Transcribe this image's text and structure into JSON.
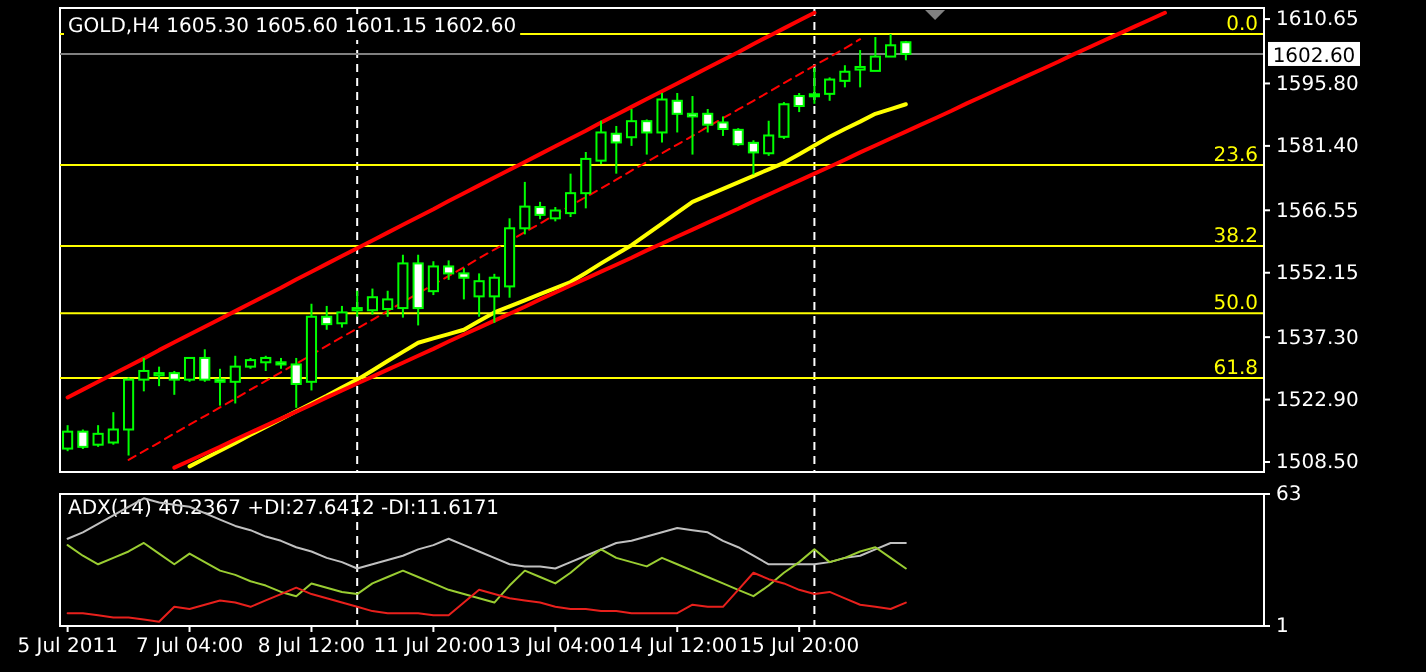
{
  "chart_data": [
    {
      "type": "candlestick",
      "title": "GOLD,H4  1605.30 1605.60 1601.15 1602.60",
      "color": "#00ff00",
      "categories": [
        null,
        null,
        null,
        null,
        null,
        null,
        null,
        null,
        null,
        null,
        null,
        null,
        null,
        null,
        null,
        null,
        null,
        null,
        null,
        null,
        null,
        null,
        null,
        null,
        null,
        null,
        null,
        null,
        null,
        null,
        null,
        null,
        null,
        null,
        null,
        null,
        null,
        null,
        null,
        null,
        null,
        null,
        null,
        null,
        null,
        null,
        null,
        null,
        null,
        null,
        null,
        null,
        null,
        null,
        null,
        null,
        null,
        null,
        null,
        null,
        null,
        null,
        null,
        null,
        null,
        null,
        null,
        null,
        null,
        null,
        null,
        null,
        null,
        null,
        null,
        null,
        null,
        null,
        null
      ],
      "ohlc": [
        [
          1511.6,
          1517,
          1511,
          1515.5
        ],
        [
          1515.5,
          1516,
          1511.5,
          1512
        ],
        [
          1512.5,
          1517,
          1512,
          1515
        ],
        [
          1513,
          1520,
          1512.5,
          1516
        ],
        [
          1516,
          1528,
          1510,
          1527.5
        ],
        [
          1527.5,
          1532.5,
          1524.8,
          1529.5
        ],
        [
          1528.5,
          1530.5,
          1526,
          1529
        ],
        [
          1529,
          1529.5,
          1524,
          1527.5
        ],
        [
          1527.5,
          1532.5,
          1527,
          1532.5
        ],
        [
          1532.5,
          1534.5,
          1527,
          1527.5
        ],
        [
          1527.5,
          1530,
          1521.5,
          1527
        ],
        [
          1527,
          1533,
          1522,
          1530.5
        ],
        [
          1530.5,
          1532.5,
          1530,
          1532
        ],
        [
          1531.5,
          1533,
          1529.5,
          1532.5
        ],
        [
          1531.5,
          1532.5,
          1530,
          1531
        ],
        [
          1531,
          1532.5,
          1521,
          1526.5
        ],
        [
          1527,
          1545,
          1525,
          1542
        ],
        [
          1542,
          1544.5,
          1539,
          1540.3
        ],
        [
          1540.5,
          1544.5,
          1539.5,
          1543
        ],
        [
          1543.5,
          1548,
          1542,
          1544
        ],
        [
          1543.5,
          1548.5,
          1542.5,
          1546.5
        ],
        [
          1543.8,
          1548,
          1542,
          1546
        ],
        [
          1544,
          1556.3,
          1541.8,
          1554.3
        ],
        [
          1554.3,
          1556.3,
          1540,
          1544
        ],
        [
          1547.9,
          1554.8,
          1547,
          1553.6
        ],
        [
          1553.6,
          1555,
          1550.5,
          1552
        ],
        [
          1552,
          1553.2,
          1546,
          1551
        ],
        [
          1546.7,
          1552,
          1542,
          1550.2
        ],
        [
          1546.7,
          1551.9,
          1540.6,
          1551
        ],
        [
          1549,
          1564.7,
          1546.4,
          1562.4
        ],
        [
          1562.4,
          1573.1,
          1561,
          1567.4
        ],
        [
          1567.3,
          1568.5,
          1564.5,
          1565.5
        ],
        [
          1564.7,
          1567.3,
          1564,
          1566.5
        ],
        [
          1565.9,
          1575,
          1565,
          1570.5
        ],
        [
          1570.5,
          1580,
          1567,
          1578.4
        ],
        [
          1578,
          1587.2,
          1577.2,
          1584.5
        ],
        [
          1584.2,
          1586,
          1575,
          1582.2
        ],
        [
          1583.4,
          1589.9,
          1581.4,
          1587.1
        ],
        [
          1587.1,
          1587.5,
          1579.4,
          1584.5
        ],
        [
          1584.5,
          1593.6,
          1582.2,
          1592.1
        ],
        [
          1591.8,
          1593.6,
          1584.5,
          1588.8
        ],
        [
          1588.8,
          1592.9,
          1579.4,
          1588.2
        ],
        [
          1588.8,
          1589.9,
          1584.5,
          1586.3
        ],
        [
          1586.8,
          1588.2,
          1583.7,
          1585.3
        ],
        [
          1585.1,
          1585.5,
          1581.4,
          1581.8
        ],
        [
          1582.1,
          1582.7,
          1574.8,
          1579.9
        ],
        [
          1579.7,
          1587.2,
          1579.1,
          1583.8
        ],
        [
          1583.5,
          1591.5,
          1583,
          1591
        ],
        [
          1592.9,
          1593.6,
          1589.2,
          1590.6
        ],
        [
          1593,
          1599.4,
          1591.1,
          1593.3
        ],
        [
          1593.4,
          1597.2,
          1591.8,
          1596.7
        ],
        [
          1596.4,
          1600,
          1594.9,
          1598.5
        ],
        [
          1599,
          1603.5,
          1594.9,
          1599.6
        ],
        [
          1598.7,
          1606.5,
          1598.7,
          1602
        ],
        [
          1602,
          1607.2,
          1602,
          1604.6
        ],
        [
          1605.3,
          1605.6,
          1601.15,
          1602.6
        ],
        null,
        null,
        null,
        null,
        null,
        null,
        null,
        null,
        null,
        null,
        null,
        null,
        null,
        null,
        null,
        null,
        null,
        null,
        null,
        null,
        null,
        null,
        null
      ],
      "series": [
        {
          "type": "line",
          "color": "#ffff00",
          "line_style": "solid",
          "values": [
            null,
            null,
            null,
            null,
            null,
            null,
            null,
            null,
            1507.5,
            1509.3,
            1511.1,
            1512.9,
            1514.8,
            1516.6,
            1518.4,
            1520.2,
            1522,
            1523.8,
            1525.7,
            1527.5,
            1529.6,
            1531.8,
            1533.9,
            1536,
            1537,
            1538,
            1539,
            1541,
            1543,
            1544.4,
            1545.8,
            1547.2,
            1548.6,
            1550,
            1552.1,
            1554.3,
            1556.4,
            1558.5,
            1561,
            1563.5,
            1566,
            1568.5,
            1570,
            1571.5,
            1573,
            1574.5,
            1576,
            1577.5,
            1579.5,
            1581.5,
            1583.5,
            1585.3,
            1587,
            1588.8,
            1589.9,
            1591,
            null,
            null,
            null,
            null,
            null,
            null,
            null,
            null,
            null,
            null,
            null,
            null,
            null,
            null,
            null,
            null,
            null,
            null,
            null,
            null,
            null,
            null,
            null
          ]
        },
        {
          "type": "line",
          "color": "#ff0000",
          "line_style": "solid",
          "values": [
            1523.4,
            1525.2,
            1527.0,
            1528.8,
            1530.6,
            1532.4,
            1534.3,
            1536.1,
            1537.9,
            1539.7,
            1541.5,
            1543.3,
            1545.1,
            1546.9,
            1548.7,
            1550.6,
            1552.4,
            1554.2,
            1556.0,
            1557.8,
            1559.6,
            1561.4,
            1563.2,
            1565.0,
            1566.8,
            1568.7,
            1570.5,
            1572.3,
            1574.1,
            1575.9,
            1577.7,
            1579.5,
            1581.3,
            1583.1,
            1584.9,
            1586.8,
            1588.6,
            1590.4,
            1592.2,
            1594.0,
            1595.8,
            1597.6,
            1599.4,
            1601.2,
            1603.0,
            1604.9,
            1606.7,
            1608.5,
            1610.3,
            1612.1,
            null,
            null,
            null,
            null,
            null,
            null,
            null,
            null,
            null,
            null,
            null,
            null,
            null,
            null,
            null,
            null,
            null,
            null,
            null,
            null,
            null,
            null,
            null,
            null,
            null,
            null,
            null,
            null,
            null
          ]
        },
        {
          "type": "line",
          "color": "#ff0000",
          "line_style": "solid",
          "values": [
            null,
            null,
            null,
            null,
            null,
            null,
            null,
            1507.2,
            1508.8,
            1510.4,
            1512.0,
            1513.7,
            1515.3,
            1516.9,
            1518.5,
            1520.1,
            1521.7,
            1523.4,
            1525.0,
            1526.6,
            1528.2,
            1529.8,
            1531.4,
            1533.0,
            1534.6,
            1536.3,
            1537.9,
            1539.5,
            1541.1,
            1542.7,
            1544.3,
            1546.0,
            1547.6,
            1549.2,
            1550.8,
            1552.4,
            1554.0,
            1555.6,
            1557.3,
            1558.9,
            1560.5,
            1562.1,
            1563.7,
            1565.3,
            1566.9,
            1568.6,
            1570.2,
            1571.8,
            1573.4,
            1575.0,
            1576.6,
            1578.2,
            1579.9,
            1581.5,
            1583.1,
            1584.7,
            1586.3,
            1587.9,
            1589.5,
            1591.2,
            1592.8,
            1594.4,
            1596.0,
            1597.6,
            1599.2,
            1600.8,
            1602.5,
            1604.1,
            1605.7,
            1607.3,
            1608.9,
            1610.5,
            1612.1,
            null,
            null,
            null,
            null,
            null,
            null
          ]
        },
        {
          "type": "line",
          "color": "#ff0000",
          "line_style": "dashed",
          "values": [
            null,
            null,
            null,
            null,
            1509.0,
            1511.0,
            1513.0,
            1515.1,
            1517.1,
            1519.1,
            1521.1,
            1523.1,
            1525.2,
            1527.2,
            1529.2,
            1531.2,
            1533.2,
            1535.3,
            1537.3,
            1539.3,
            1541.3,
            1543.3,
            1545.4,
            1547.4,
            1549.4,
            1551.4,
            1553.4,
            1555.5,
            1557.5,
            1559.5,
            1561.5,
            1563.5,
            1565.6,
            1567.6,
            1569.6,
            1571.6,
            1573.6,
            1575.7,
            1577.7,
            1579.7,
            1581.7,
            1583.7,
            1585.8,
            1587.8,
            1589.8,
            1591.8,
            1593.8,
            1595.9,
            1597.9,
            1599.9,
            1601.9,
            1603.9,
            1606.0,
            null,
            null,
            null,
            null,
            null,
            null,
            null,
            null,
            null,
            null,
            null,
            null,
            null,
            null,
            null,
            null,
            null,
            null,
            null,
            null,
            null,
            null,
            null,
            null,
            null,
            null
          ]
        }
      ],
      "ref_lines": [
        {
          "axis": "y",
          "value": 1607.2,
          "color": "#ffff00"
        },
        {
          "axis": "y",
          "value": 1577.0,
          "color": "#ffff00"
        },
        {
          "axis": "y",
          "value": 1558.3,
          "color": "#ffff00"
        },
        {
          "axis": "y",
          "value": 1542.8,
          "color": "#ffff00"
        },
        {
          "axis": "y",
          "value": 1527.9,
          "color": "#ffff00"
        },
        {
          "axis": "y",
          "value": 1602.6,
          "label": "1602.60",
          "color": "#808080"
        }
      ],
      "annotations": [
        {
          "text": "0.0",
          "y": 1607.2
        },
        {
          "text": "23.6",
          "y": 1577.0
        },
        {
          "text": "38.2",
          "y": 1558.3
        },
        {
          "text": "50.0",
          "y": 1542.8
        },
        {
          "text": "61.8",
          "y": 1527.9
        }
      ],
      "ylim": [
        1506.2,
        1613.2
      ],
      "yticks": [
        {
          "value": 1610.65,
          "label": "1610.65"
        },
        {
          "value": 1595.8,
          "label": "1595.80"
        },
        {
          "value": 1581.4,
          "label": "1581.40"
        },
        {
          "value": 1566.55,
          "label": "1566.55"
        },
        {
          "value": 1552.15,
          "label": "1552.15"
        },
        {
          "value": 1537.3,
          "label": "1537.30"
        },
        {
          "value": 1522.9,
          "label": "1522.90"
        },
        {
          "value": 1508.5,
          "label": "1508.50"
        }
      ],
      "tick_labels": "y"
    },
    {
      "type": "line",
      "title": "ADX(14) 40.2367 +DI:27.6412 -DI:11.6171",
      "categories": [
        "5 Jul 2011",
        null,
        null,
        null,
        null,
        null,
        null,
        null,
        "7 Jul 04:00",
        null,
        null,
        null,
        null,
        null,
        null,
        null,
        "8 Jul 12:00",
        null,
        null,
        null,
        null,
        null,
        null,
        null,
        "11 Jul 20:00",
        null,
        null,
        null,
        null,
        null,
        null,
        null,
        "13 Jul 04:00",
        null,
        null,
        null,
        null,
        null,
        null,
        null,
        "14 Jul 12:00",
        null,
        null,
        null,
        null,
        null,
        null,
        null,
        "15 Jul 20:00",
        null,
        null,
        null,
        null,
        null,
        null,
        null,
        null,
        null,
        null,
        null,
        null,
        null,
        null,
        null,
        null,
        null,
        null,
        null,
        null,
        null,
        null,
        null,
        null,
        null,
        null,
        null,
        null,
        null,
        null
      ],
      "series": [
        {
          "color": "#c0c0c0",
          "values": [
            42,
            45,
            49,
            53,
            57,
            61,
            59,
            58,
            57,
            54,
            51,
            48,
            46,
            43,
            41,
            38,
            36,
            33,
            31,
            28,
            30,
            32,
            34,
            37,
            39,
            42,
            39,
            36,
            33,
            30,
            29,
            29,
            28,
            31,
            34,
            37,
            40,
            41,
            43,
            45,
            47,
            46,
            45,
            41,
            38,
            34,
            30,
            30,
            30,
            30,
            31,
            33,
            34,
            37,
            40,
            40,
            null,
            null,
            null,
            null,
            null,
            null,
            null,
            null,
            null,
            null,
            null,
            null,
            null,
            null,
            null,
            null,
            null,
            null,
            null,
            null,
            null,
            null,
            null
          ]
        },
        {
          "color": "#9acd32",
          "values": [
            39,
            34,
            30,
            33,
            36,
            40,
            35,
            30,
            35,
            31,
            27,
            25,
            22,
            20,
            17,
            15,
            21,
            19,
            17,
            16,
            21,
            24,
            27,
            24,
            21,
            18,
            16,
            14,
            12,
            20,
            27,
            24,
            21,
            26,
            32,
            37,
            33,
            31,
            29,
            33,
            30,
            27,
            24,
            21,
            18,
            15,
            20,
            26,
            31,
            37,
            31,
            33,
            36,
            38,
            33,
            28,
            null,
            null,
            null,
            null,
            null,
            null,
            null,
            null,
            null,
            null,
            null,
            null,
            null,
            null,
            null,
            null,
            null,
            null,
            null,
            null,
            null,
            null,
            null
          ]
        },
        {
          "color": "#e8201c",
          "values": [
            7,
            7,
            6,
            5,
            5,
            4,
            3,
            10,
            9,
            11,
            13,
            12,
            10,
            13,
            16,
            19,
            16,
            14,
            12,
            10,
            8,
            7,
            7,
            7,
            6,
            6,
            12,
            18,
            16,
            14,
            13,
            12,
            10,
            9,
            9,
            8,
            8,
            7,
            7,
            7,
            7,
            11,
            10,
            10,
            18,
            26,
            23,
            21,
            18,
            16,
            17,
            14,
            11,
            10,
            9,
            12,
            null,
            null,
            null,
            null,
            null,
            null,
            null,
            null,
            null,
            null,
            null,
            null,
            null,
            null,
            null,
            null,
            null,
            null,
            null,
            null,
            null,
            null,
            null
          ]
        }
      ],
      "ylim": [
        1,
        63
      ],
      "yticks": [
        1,
        63
      ]
    }
  ]
}
